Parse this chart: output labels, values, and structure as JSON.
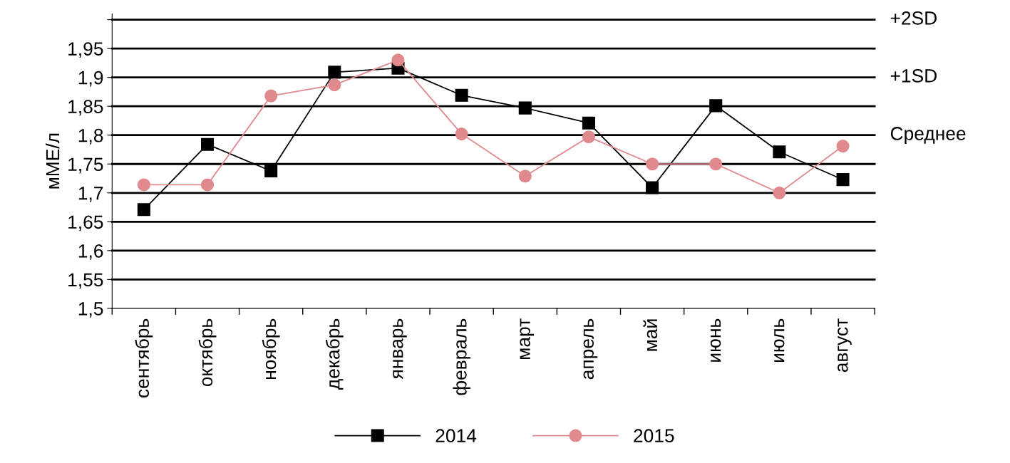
{
  "chart_data": {
    "type": "line",
    "ylabel": "мМЕ/л",
    "categories": [
      "сентябрь",
      "октябрь",
      "ноябрь",
      "декабрь",
      "январь",
      "февраль",
      "март",
      "апрель",
      "май",
      "июнь",
      "июль",
      "август"
    ],
    "series": [
      {
        "name": "2014",
        "color": "#000000",
        "marker": "square",
        "values": [
          1.671,
          1.784,
          1.738,
          1.909,
          1.916,
          1.869,
          1.847,
          1.821,
          1.709,
          1.851,
          1.771,
          1.723
        ]
      },
      {
        "name": "2015",
        "color": "#e08a8e",
        "marker": "circle",
        "values": [
          1.714,
          1.714,
          1.868,
          1.887,
          1.93,
          1.802,
          1.729,
          1.797,
          1.75,
          1.75,
          1.7,
          1.781
        ]
      }
    ],
    "ylim": [
      1.5,
      2.01
    ],
    "yticks": [
      {
        "value": 1.5,
        "label": "1,5"
      },
      {
        "value": 1.55,
        "label": "1,55"
      },
      {
        "value": 1.6,
        "label": "1,6"
      },
      {
        "value": 1.65,
        "label": "1,65"
      },
      {
        "value": 1.7,
        "label": "1,7"
      },
      {
        "value": 1.75,
        "label": "1,75"
      },
      {
        "value": 1.8,
        "label": "1,8"
      },
      {
        "value": 1.85,
        "label": "1,85"
      },
      {
        "value": 1.9,
        "label": "1,9"
      },
      {
        "value": 1.95,
        "label": "1,95"
      },
      {
        "value": 2.0,
        "label": null
      }
    ],
    "ref_lines": [
      {
        "axis": "y",
        "value": 2.0,
        "label": "+2SD",
        "color": "#000000"
      },
      {
        "axis": "y",
        "value": 1.9,
        "label": "+1SD",
        "color": "#000000"
      },
      {
        "axis": "y",
        "value": 1.8,
        "label": "Среднее",
        "color": "#000000"
      },
      {
        "axis": "y",
        "value": 1.7,
        "label": null,
        "color": "#000000"
      },
      {
        "axis": "y",
        "value": 1.6,
        "label": null,
        "color": "#000000"
      },
      {
        "axis": "y",
        "value": 1.95,
        "label": null,
        "color": "#000000"
      },
      {
        "axis": "y",
        "value": 1.85,
        "label": null,
        "color": "#000000"
      },
      {
        "axis": "y",
        "value": 1.75,
        "label": null,
        "color": "#000000"
      },
      {
        "axis": "y",
        "value": 1.65,
        "label": null,
        "color": "#000000"
      },
      {
        "axis": "y",
        "value": 1.55,
        "label": null,
        "color": "#000000"
      }
    ],
    "legend": "bottom",
    "line_style": "solid"
  }
}
